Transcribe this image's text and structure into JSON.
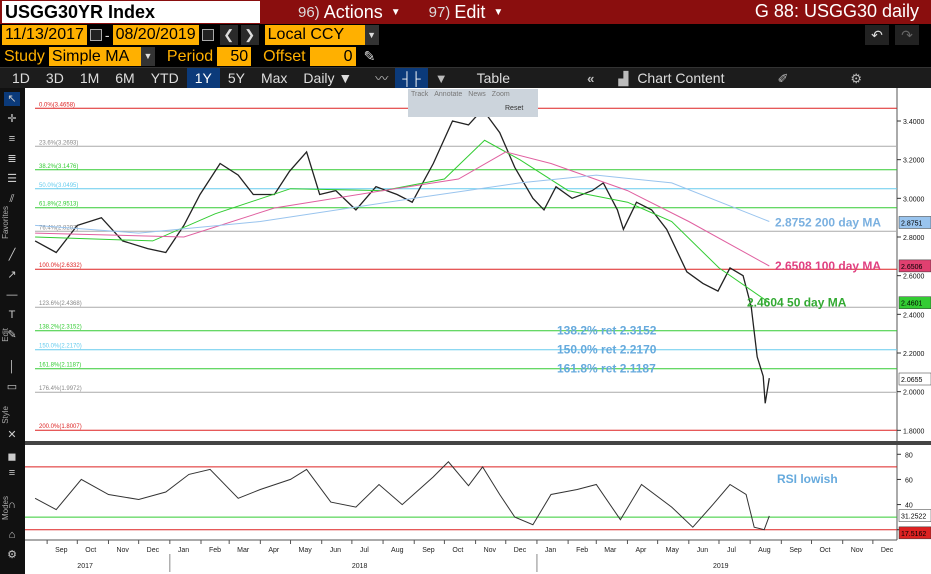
{
  "header": {
    "ticker": "USGG30YR Index",
    "actions_num": "96)",
    "actions_label": "Actions",
    "edit_num": "97)",
    "edit_label": "Edit",
    "title": "G 88: USGG30 daily"
  },
  "range": {
    "start": "11/13/2017",
    "end": "08/20/2019",
    "currency": "Local CCY"
  },
  "study": {
    "study_label": "Study",
    "study_value": "Simple MA",
    "period_label": "Period",
    "period_value": "50",
    "offset_label": "Offset",
    "offset_value": "0"
  },
  "toolbar": {
    "periods": [
      "1D",
      "3D",
      "1M",
      "6M",
      "YTD",
      "1Y",
      "5Y",
      "Max"
    ],
    "active_period": "1Y",
    "frequency": "Daily",
    "table_label": "Table",
    "chart_content_label": "Chart Content"
  },
  "overlay_tools": [
    "Track",
    "Annotate",
    "News",
    "Zoom",
    "Reset"
  ],
  "left_labels": {
    "favorites": "Favorites",
    "edit": "Edit",
    "style": "Style",
    "modes": "Modes"
  },
  "chart_data": [
    {
      "type": "line",
      "series": [
        {
          "name": "USGG30YR",
          "color": "#222222",
          "points": [
            [
              "2017-08-20",
              2.78
            ],
            [
              "2017-09-10",
              2.72
            ],
            [
              "2017-10-01",
              2.86
            ],
            [
              "2017-10-25",
              2.9
            ],
            [
              "2017-11-15",
              2.78
            ],
            [
              "2017-12-10",
              2.74
            ],
            [
              "2017-12-28",
              2.72
            ],
            [
              "2018-01-15",
              2.86
            ],
            [
              "2018-01-31",
              3.02
            ],
            [
              "2018-02-20",
              3.18
            ],
            [
              "2018-03-10",
              3.12
            ],
            [
              "2018-03-25",
              3.02
            ],
            [
              "2018-04-15",
              3.02
            ],
            [
              "2018-04-30",
              3.14
            ],
            [
              "2018-05-17",
              3.24
            ],
            [
              "2018-05-30",
              3.02
            ],
            [
              "2018-06-15",
              3.04
            ],
            [
              "2018-07-05",
              2.94
            ],
            [
              "2018-07-25",
              3.06
            ],
            [
              "2018-08-15",
              3.02
            ],
            [
              "2018-08-30",
              2.98
            ],
            [
              "2018-09-20",
              3.18
            ],
            [
              "2018-10-09",
              3.4
            ],
            [
              "2018-10-25",
              3.38
            ],
            [
              "2018-11-08",
              3.46
            ],
            [
              "2018-11-25",
              3.34
            ],
            [
              "2018-12-10",
              3.16
            ],
            [
              "2018-12-28",
              3.0
            ],
            [
              "2019-01-08",
              2.94
            ],
            [
              "2019-01-20",
              3.06
            ],
            [
              "2019-02-05",
              3.0
            ],
            [
              "2019-02-25",
              3.04
            ],
            [
              "2019-03-08",
              3.08
            ],
            [
              "2019-03-22",
              2.94
            ],
            [
              "2019-03-28",
              2.84
            ],
            [
              "2019-04-10",
              2.98
            ],
            [
              "2019-04-25",
              2.94
            ],
            [
              "2019-05-10",
              2.84
            ],
            [
              "2019-05-30",
              2.62
            ],
            [
              "2019-06-15",
              2.56
            ],
            [
              "2019-06-30",
              2.52
            ],
            [
              "2019-07-12",
              2.64
            ],
            [
              "2019-07-25",
              2.6
            ],
            [
              "2019-08-02",
              2.44
            ],
            [
              "2019-08-08",
              2.18
            ],
            [
              "2019-08-14",
              2.08
            ],
            [
              "2019-08-16",
              1.94
            ],
            [
              "2019-08-20",
              2.07
            ]
          ]
        },
        {
          "name": "50 day MA",
          "color": "#33cc33",
          "points": [
            [
              "2017-08-20",
              2.8
            ],
            [
              "2017-12-15",
              2.78
            ],
            [
              "2018-02-15",
              2.92
            ],
            [
              "2018-05-01",
              3.05
            ],
            [
              "2018-08-01",
              3.04
            ],
            [
              "2018-10-01",
              3.1
            ],
            [
              "2018-11-10",
              3.3
            ],
            [
              "2018-12-15",
              3.2
            ],
            [
              "2019-02-01",
              3.04
            ],
            [
              "2019-04-01",
              2.98
            ],
            [
              "2019-05-15",
              2.88
            ],
            [
              "2019-07-01",
              2.64
            ],
            [
              "2019-08-20",
              2.46
            ]
          ]
        },
        {
          "name": "100 day MA",
          "color": "#e060a0",
          "points": [
            [
              "2017-08-20",
              2.82
            ],
            [
              "2018-01-15",
              2.8
            ],
            [
              "2018-04-15",
              2.95
            ],
            [
              "2018-08-01",
              3.04
            ],
            [
              "2018-10-15",
              3.1
            ],
            [
              "2018-12-01",
              3.24
            ],
            [
              "2019-01-15",
              3.18
            ],
            [
              "2019-04-01",
              3.04
            ],
            [
              "2019-06-01",
              2.88
            ],
            [
              "2019-08-20",
              2.65
            ]
          ]
        },
        {
          "name": "200 day MA",
          "color": "#99c4ee",
          "points": [
            [
              "2017-08-20",
              2.86
            ],
            [
              "2017-12-01",
              2.82
            ],
            [
              "2018-04-01",
              2.88
            ],
            [
              "2018-09-01",
              3.0
            ],
            [
              "2018-12-15",
              3.08
            ],
            [
              "2019-03-01",
              3.12
            ],
            [
              "2019-05-15",
              3.08
            ],
            [
              "2019-08-20",
              2.88
            ]
          ]
        }
      ],
      "fib_levels": [
        {
          "label": "0.0%(3.4658)",
          "value": 3.4658,
          "color": "#dd2222"
        },
        {
          "label": "23.6%(3.2693)",
          "value": 3.2693,
          "color": "#aaaaaa"
        },
        {
          "label": "38.2%(3.1476)",
          "value": 3.1476,
          "color": "#33cc33"
        },
        {
          "label": "50.0%(3.0495)",
          "value": 3.0495,
          "color": "#66ccee"
        },
        {
          "label": "61.8%(2.9513)",
          "value": 2.9513,
          "color": "#33cc33"
        },
        {
          "label": "76.4%(2.8297)",
          "value": 2.8297,
          "color": "#aaaaaa"
        },
        {
          "label": "100.0%(2.6332)",
          "value": 2.6332,
          "color": "#dd2222"
        },
        {
          "label": "123.6%(2.4368)",
          "value": 2.4368,
          "color": "#aaaaaa"
        },
        {
          "label": "138.2%(2.3152)",
          "value": 2.3152,
          "color": "#33cc33"
        },
        {
          "label": "150.0%(2.2170)",
          "value": 2.217,
          "color": "#66ccee"
        },
        {
          "label": "161.8%(2.1187)",
          "value": 2.1187,
          "color": "#33cc33"
        },
        {
          "label": "176.4%(1.9972)",
          "value": 1.9972,
          "color": "#aaaaaa"
        },
        {
          "label": "200.0%(1.8007)",
          "value": 1.8007,
          "color": "#dd2222"
        }
      ],
      "annotations": [
        {
          "text": "2.8752 200 day MA",
          "color": "#7ab0e0",
          "value": 2.8752
        },
        {
          "text": "2.6508 100 day MA",
          "color": "#e04080",
          "value": 2.6508
        },
        {
          "text": "2.4604 50 day  MA",
          "color": "#33aa33",
          "value": 2.4604
        },
        {
          "text": "138.2% ret 2.3152",
          "color": "#66aadd",
          "value": 2.3152
        },
        {
          "text": "150.0% ret 2.2170",
          "color": "#66aadd",
          "value": 2.217
        },
        {
          "text": "161.8% ret 2.1187",
          "color": "#66aadd",
          "value": 2.1187
        }
      ],
      "y_ticks": [
        "3.4000",
        "3.2000",
        "3.0000",
        "2.8000",
        "2.6000",
        "2.4000",
        "2.2000",
        "2.0000",
        "1.8000"
      ],
      "y_range": [
        1.75,
        3.55
      ],
      "value_tags": [
        {
          "text": "2.8751",
          "color": "#99c4ee",
          "value": 2.8751
        },
        {
          "text": "2.6506",
          "color": "#e04070",
          "value": 2.6506
        },
        {
          "text": "2.4601",
          "color": "#33cc33",
          "value": 2.4601
        },
        {
          "text": "2.0655",
          "color": "#ffffff",
          "value": 2.0655
        }
      ]
    },
    {
      "type": "line",
      "series": [
        {
          "name": "RSI",
          "color": "#333333",
          "points": [
            [
              "2017-08-20",
              45
            ],
            [
              "2017-09-10",
              36
            ],
            [
              "2017-10-05",
              60
            ],
            [
              "2017-11-01",
              48
            ],
            [
              "2017-12-01",
              44
            ],
            [
              "2017-12-28",
              50
            ],
            [
              "2018-01-20",
              64
            ],
            [
              "2018-02-10",
              68
            ],
            [
              "2018-03-10",
              45
            ],
            [
              "2018-04-01",
              52
            ],
            [
              "2018-05-01",
              60
            ],
            [
              "2018-05-17",
              68
            ],
            [
              "2018-06-10",
              42
            ],
            [
              "2018-07-05",
              38
            ],
            [
              "2018-07-28",
              56
            ],
            [
              "2018-08-20",
              40
            ],
            [
              "2018-09-20",
              62
            ],
            [
              "2018-10-05",
              74
            ],
            [
              "2018-10-25",
              55
            ],
            [
              "2018-11-08",
              70
            ],
            [
              "2018-11-25",
              48
            ],
            [
              "2018-12-10",
              30
            ],
            [
              "2018-12-28",
              24
            ],
            [
              "2019-01-15",
              48
            ],
            [
              "2019-02-10",
              52
            ],
            [
              "2019-03-01",
              56
            ],
            [
              "2019-03-25",
              28
            ],
            [
              "2019-04-15",
              56
            ],
            [
              "2019-05-15",
              38
            ],
            [
              "2019-06-05",
              22
            ],
            [
              "2019-06-25",
              40
            ],
            [
              "2019-07-12",
              56
            ],
            [
              "2019-07-28",
              48
            ],
            [
              "2019-08-05",
              22
            ],
            [
              "2019-08-15",
              20
            ],
            [
              "2019-08-20",
              31
            ]
          ]
        }
      ],
      "levels": [
        {
          "value": 70,
          "color": "#dd2222"
        },
        {
          "value": 30,
          "color": "#33cc33"
        },
        {
          "value": 20,
          "color": "#dd2222"
        }
      ],
      "annotation": {
        "text": "RSI lowish",
        "color": "#66aadd"
      },
      "y_ticks": [
        "80",
        "60",
        "40",
        "20"
      ],
      "y_range": [
        15,
        85
      ],
      "value_tags": [
        {
          "text": "31.2522",
          "color": "#ffffff",
          "value": 31.2522
        },
        {
          "text": "17.5162",
          "color": "#dd2222",
          "value": 17.5162
        }
      ]
    }
  ],
  "x_axis": {
    "months": [
      "Sep",
      "Oct",
      "Nov",
      "Dec",
      "Jan",
      "Feb",
      "Mar",
      "Apr",
      "May",
      "Jun",
      "Jul",
      "Aug",
      "Sep",
      "Oct",
      "Nov",
      "Dec",
      "Jan",
      "Feb",
      "Mar",
      "Apr",
      "May",
      "Jun",
      "Jul",
      "Aug",
      "Sep",
      "Oct",
      "Nov",
      "Dec"
    ],
    "month_dates": [
      "2017-09-01",
      "2017-10-01",
      "2017-11-01",
      "2017-12-01",
      "2018-01-01",
      "2018-02-01",
      "2018-03-01",
      "2018-04-01",
      "2018-05-01",
      "2018-06-01",
      "2018-07-01",
      "2018-08-01",
      "2018-09-01",
      "2018-10-01",
      "2018-11-01",
      "2018-12-01",
      "2019-01-01",
      "2019-02-01",
      "2019-03-01",
      "2019-04-01",
      "2019-05-01",
      "2019-06-01",
      "2019-07-01",
      "2019-08-01",
      "2019-09-01",
      "2019-10-01",
      "2019-11-01",
      "2019-12-01"
    ],
    "years": [
      "2017",
      "2018",
      "2019"
    ],
    "year_dates": [
      "2017-10-01",
      "2018-07-01",
      "2019-06-25"
    ],
    "range": [
      "2017-08-10",
      "2019-12-25"
    ]
  }
}
